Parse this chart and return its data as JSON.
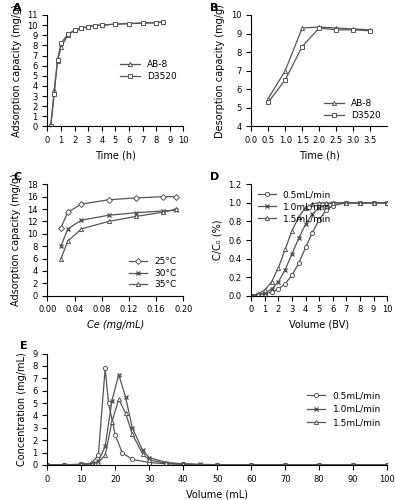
{
  "A": {
    "title": "A",
    "xlabel": "Time (h)",
    "ylabel": "Adsorption capacity (mg/g)",
    "xlim": [
      0,
      10
    ],
    "ylim": [
      0,
      11
    ],
    "yticks": [
      0,
      1,
      2,
      3,
      4,
      5,
      6,
      7,
      8,
      9,
      10,
      11
    ],
    "xticks": [
      0,
      1,
      2,
      3,
      4,
      5,
      6,
      7,
      8,
      9,
      10
    ],
    "AB8_x": [
      0.25,
      0.5,
      0.75,
      1.0,
      1.5,
      2.0,
      2.5,
      3.0,
      3.5,
      4.0,
      5.0,
      6.0,
      7.0,
      8.0,
      8.5
    ],
    "AB8_y": [
      0.05,
      3.6,
      6.5,
      7.8,
      9.0,
      9.5,
      9.7,
      9.85,
      9.95,
      10.0,
      10.1,
      10.15,
      10.2,
      10.25,
      10.3
    ],
    "D3520_x": [
      0.25,
      0.5,
      0.75,
      1.0,
      1.5,
      2.0,
      2.5,
      3.0,
      3.5,
      4.0,
      5.0,
      6.0,
      7.0,
      8.0,
      8.5
    ],
    "D3520_y": [
      0.05,
      3.2,
      6.6,
      8.2,
      9.1,
      9.5,
      9.7,
      9.85,
      9.95,
      10.0,
      10.1,
      10.15,
      10.2,
      10.25,
      10.3
    ]
  },
  "B": {
    "title": "B",
    "xlabel": "Time (h)",
    "ylabel": "Desorption capacity (mg/g)",
    "xlim": [
      0,
      4
    ],
    "ylim": [
      4,
      10
    ],
    "yticks": [
      4,
      5,
      6,
      7,
      8,
      9,
      10
    ],
    "xticks": [
      0,
      0.5,
      1.0,
      1.5,
      2.0,
      2.5,
      3.0,
      3.5
    ],
    "AB8_x": [
      0.5,
      1.0,
      1.5,
      2.0,
      2.5,
      3.0,
      3.5
    ],
    "AB8_y": [
      5.5,
      7.0,
      9.3,
      9.35,
      9.3,
      9.25,
      9.2
    ],
    "D3520_x": [
      0.5,
      1.0,
      1.5,
      2.0,
      2.5,
      3.0,
      3.5
    ],
    "D3520_y": [
      5.3,
      6.5,
      8.3,
      9.3,
      9.2,
      9.2,
      9.15
    ]
  },
  "C": {
    "title": "C",
    "xlabel": "Ce (mg/mL)",
    "ylabel": "Adsorption capacity (mg/g)",
    "xlim": [
      0,
      0.2
    ],
    "ylim": [
      0,
      18
    ],
    "yticks": [
      0,
      2,
      4,
      6,
      8,
      10,
      12,
      14,
      16,
      18
    ],
    "xticks": [
      0,
      0.04,
      0.08,
      0.12,
      0.16,
      0.2
    ],
    "t25_x": [
      0.02,
      0.03,
      0.05,
      0.09,
      0.13,
      0.17,
      0.19
    ],
    "t25_y": [
      11.0,
      13.5,
      14.8,
      15.5,
      15.8,
      16.0,
      16.0
    ],
    "t30_x": [
      0.02,
      0.03,
      0.05,
      0.09,
      0.13,
      0.17,
      0.19
    ],
    "t30_y": [
      8.0,
      10.8,
      12.2,
      13.0,
      13.4,
      13.7,
      13.8
    ],
    "t35_x": [
      0.02,
      0.03,
      0.05,
      0.09,
      0.13,
      0.17,
      0.19
    ],
    "t35_y": [
      6.0,
      8.8,
      10.8,
      12.0,
      12.8,
      13.5,
      14.0
    ]
  },
  "D": {
    "title": "D",
    "xlabel": "Volume (BV)",
    "ylabel": "C/C₀ (%)",
    "xlim": [
      0,
      10
    ],
    "ylim": [
      0,
      1.2
    ],
    "yticks": [
      0,
      0.2,
      0.4,
      0.6,
      0.8,
      1.0,
      1.2
    ],
    "xticks": [
      0,
      1,
      2,
      3,
      4,
      5,
      6,
      7,
      8,
      9,
      10
    ],
    "s05_x": [
      0,
      0.5,
      1.0,
      1.5,
      2.0,
      2.5,
      3.0,
      3.5,
      4.0,
      4.5,
      5.0,
      5.5,
      6.0,
      7.0,
      8.0,
      9.0,
      10.0
    ],
    "s05_y": [
      0,
      0.01,
      0.02,
      0.04,
      0.07,
      0.13,
      0.22,
      0.35,
      0.52,
      0.68,
      0.82,
      0.92,
      0.97,
      1.0,
      1.0,
      1.0,
      1.0
    ],
    "s10_x": [
      0,
      0.5,
      1.0,
      1.5,
      2.0,
      2.5,
      3.0,
      3.5,
      4.0,
      4.5,
      5.0,
      5.5,
      6.0,
      7.0,
      8.0,
      9.0,
      10.0
    ],
    "s10_y": [
      0,
      0.01,
      0.03,
      0.07,
      0.15,
      0.28,
      0.45,
      0.62,
      0.77,
      0.88,
      0.95,
      0.98,
      1.0,
      1.0,
      1.0,
      1.0,
      1.0
    ],
    "s15_x": [
      0,
      0.5,
      1.0,
      1.5,
      2.0,
      2.5,
      3.0,
      3.5,
      4.0,
      4.5,
      5.0,
      5.5,
      6.0,
      7.0,
      8.0,
      9.0,
      10.0
    ],
    "s15_y": [
      0,
      0.02,
      0.06,
      0.15,
      0.3,
      0.5,
      0.7,
      0.85,
      0.95,
      0.99,
      1.0,
      1.0,
      1.0,
      1.0,
      1.0,
      1.0,
      1.0
    ]
  },
  "E": {
    "title": "E",
    "xlabel": "Volume (mL)",
    "ylabel": "Concentration (mg/mL)",
    "xlim": [
      0,
      100
    ],
    "ylim": [
      0,
      9
    ],
    "yticks": [
      0,
      1,
      2,
      3,
      4,
      5,
      6,
      7,
      8,
      9
    ],
    "xticks": [
      0,
      10,
      20,
      30,
      40,
      50,
      60,
      70,
      80,
      90,
      100
    ],
    "s05_x": [
      0,
      5,
      10,
      13,
      15,
      17,
      18,
      20,
      22,
      25,
      30,
      35,
      40,
      45,
      50,
      60,
      70,
      80,
      90,
      100
    ],
    "s05_y": [
      0,
      0.02,
      0.05,
      0.15,
      0.8,
      7.8,
      5.0,
      2.4,
      1.0,
      0.45,
      0.2,
      0.1,
      0.05,
      0.03,
      0.02,
      0.01,
      0.01,
      0.01,
      0.01,
      0.01
    ],
    "s10_x": [
      0,
      5,
      10,
      13,
      15,
      17,
      19,
      21,
      23,
      25,
      28,
      30,
      35,
      40,
      45,
      50,
      60,
      70,
      80,
      90,
      100
    ],
    "s10_y": [
      0,
      0.02,
      0.05,
      0.1,
      0.3,
      1.5,
      5.2,
      7.3,
      5.5,
      3.0,
      1.2,
      0.6,
      0.2,
      0.1,
      0.05,
      0.03,
      0.02,
      0.01,
      0.01,
      0.01,
      0.01
    ],
    "s15_x": [
      0,
      5,
      10,
      13,
      15,
      17,
      19,
      21,
      23,
      25,
      28,
      30,
      35,
      40,
      45,
      50,
      60,
      70,
      80,
      90,
      100
    ],
    "s15_y": [
      0,
      0.02,
      0.05,
      0.1,
      0.2,
      0.8,
      3.5,
      5.3,
      4.2,
      2.5,
      0.9,
      0.4,
      0.15,
      0.07,
      0.03,
      0.02,
      0.01,
      0.01,
      0.01,
      0.01,
      0.01
    ]
  },
  "line_color": "#555555",
  "font_size": 7,
  "label_font_size": 7,
  "legend_font_size": 6.5,
  "tick_font_size": 6
}
